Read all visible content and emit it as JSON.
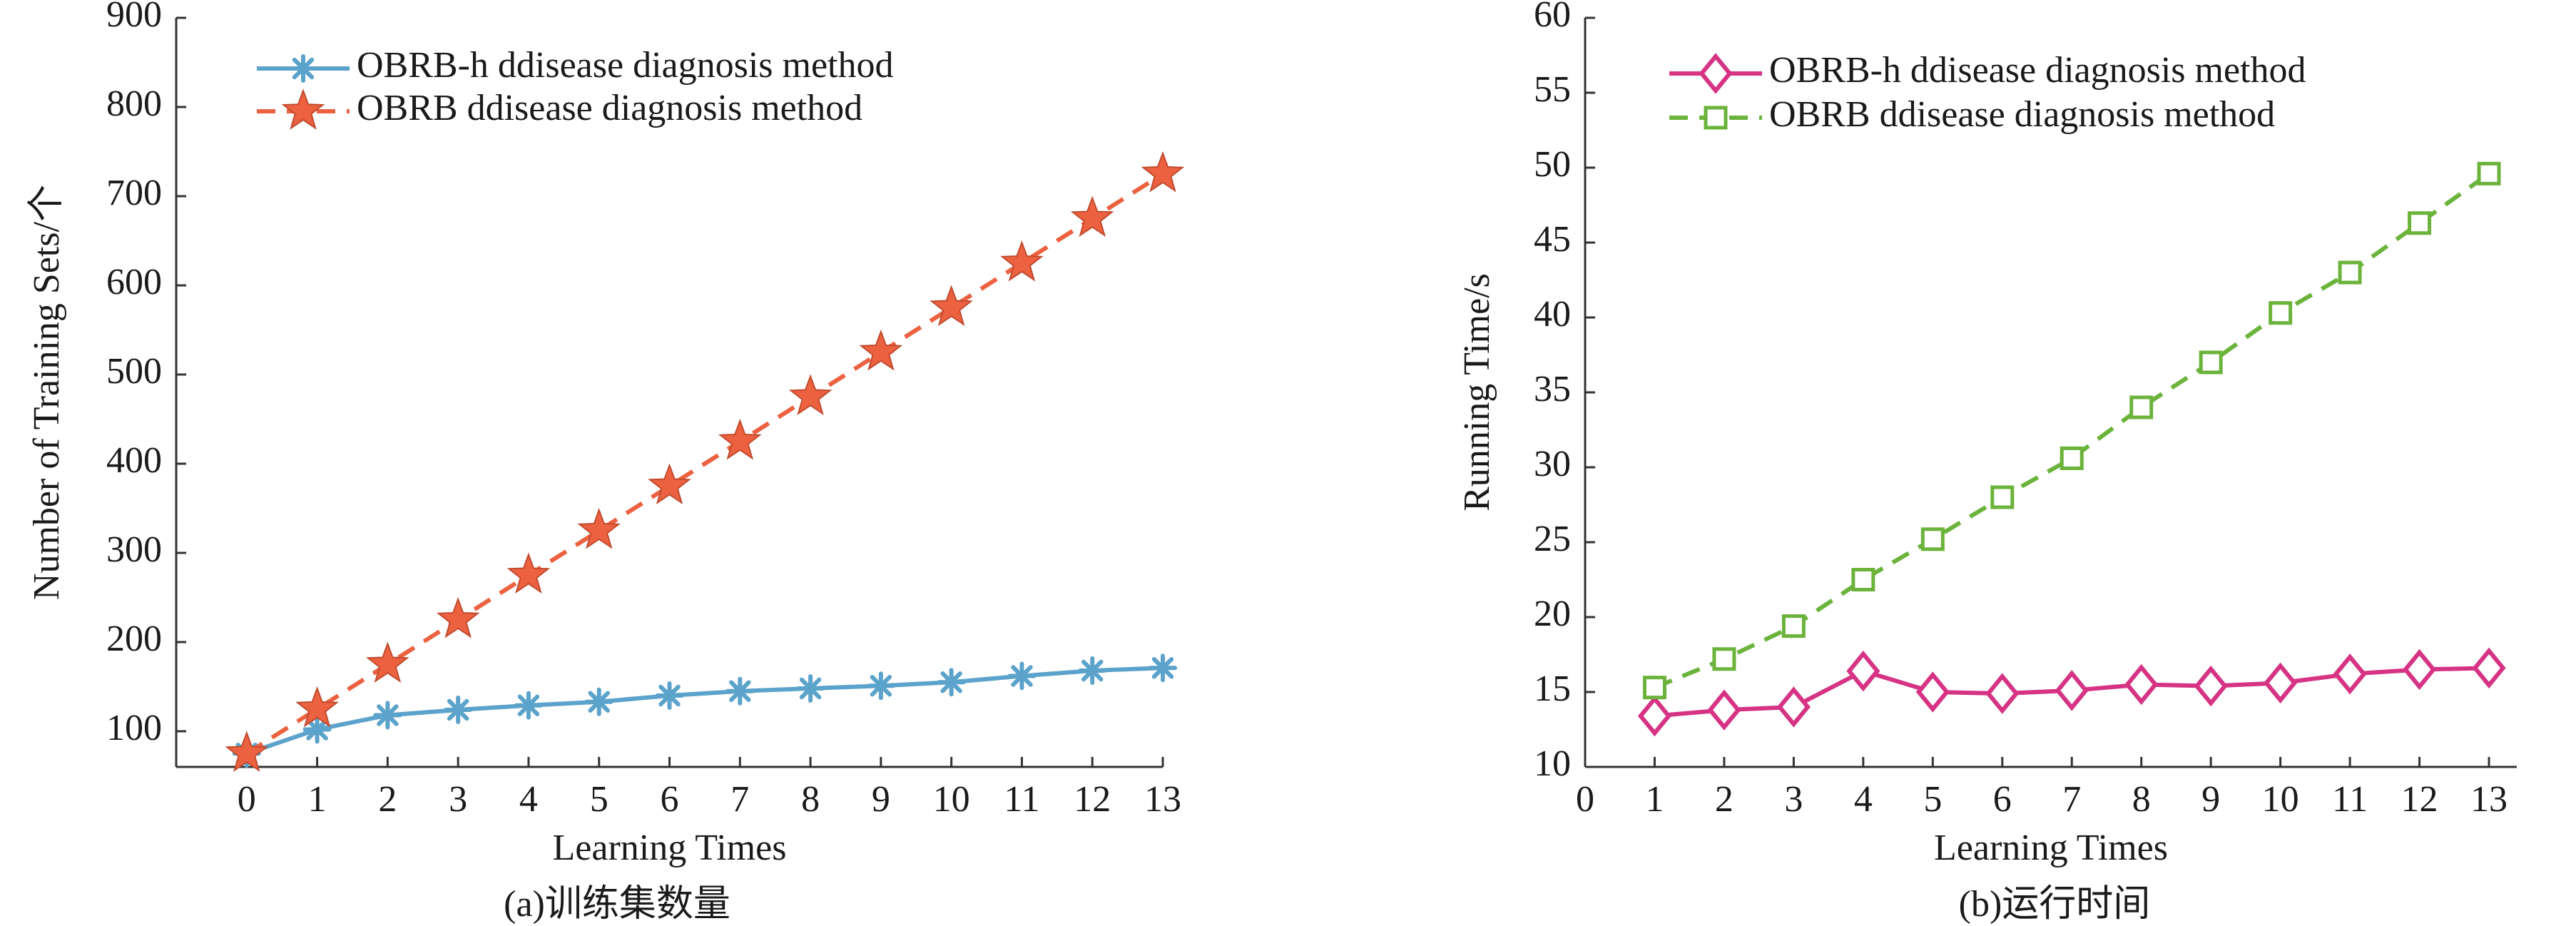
{
  "chart_data": [
    {
      "type": "line",
      "caption": "(a)训练集数量",
      "xlabel": "Learning Times",
      "ylabel": "Number of Training Sets/个",
      "xlim": [
        -1,
        13
      ],
      "ylim": [
        60,
        900
      ],
      "xticks": [
        0,
        1,
        2,
        3,
        4,
        5,
        6,
        7,
        8,
        9,
        10,
        11,
        12,
        13
      ],
      "yticks": [
        100,
        200,
        300,
        400,
        500,
        600,
        700,
        800,
        900
      ],
      "legend_position": "top-left",
      "grid": false,
      "x": [
        0,
        1,
        2,
        3,
        4,
        5,
        6,
        7,
        8,
        9,
        10,
        11,
        12,
        13
      ],
      "series": [
        {
          "name": "OBRB-h ddisease diagnosis method",
          "color": "#5BA3CB",
          "line": "solid",
          "marker": "asterisk",
          "values": [
            75,
            102,
            118,
            124,
            129,
            133,
            140,
            145,
            148,
            151,
            155,
            162,
            168,
            171
          ]
        },
        {
          "name": "OBRB ddisease diagnosis method",
          "color": "#EC6241",
          "line": "dashed",
          "marker": "star",
          "values": [
            75,
            125,
            175,
            225,
            275,
            325,
            375,
            425,
            475,
            525,
            575,
            625,
            675,
            725
          ]
        }
      ]
    },
    {
      "type": "line",
      "caption": "(b)运行时间",
      "xlabel": "Learning Times",
      "ylabel": "Running Time/s",
      "xlim": [
        0,
        13.4
      ],
      "ylim": [
        10,
        60
      ],
      "xticks": [
        0,
        1,
        2,
        3,
        4,
        5,
        6,
        7,
        8,
        9,
        10,
        11,
        12,
        13
      ],
      "yticks": [
        10,
        15,
        20,
        25,
        30,
        35,
        40,
        45,
        50,
        55,
        60
      ],
      "legend_position": "top-left",
      "grid": false,
      "x": [
        1,
        2,
        3,
        4,
        5,
        6,
        7,
        8,
        9,
        10,
        11,
        12,
        13
      ],
      "series": [
        {
          "name": "OBRB-h ddisease diagnosis method",
          "color": "#D63384",
          "line": "solid",
          "marker": "diamond",
          "values": [
            13.4,
            13.8,
            14.0,
            16.4,
            15.0,
            14.9,
            15.1,
            15.5,
            15.4,
            15.6,
            16.2,
            16.5,
            16.6
          ]
        },
        {
          "name": "OBRB ddisease diagnosis method",
          "color": "#6BB33B",
          "line": "dashed",
          "marker": "square",
          "values": [
            15.3,
            17.2,
            19.4,
            22.5,
            25.2,
            28.0,
            30.6,
            34.0,
            37.0,
            40.3,
            43.0,
            46.3,
            49.6
          ]
        }
      ]
    }
  ]
}
